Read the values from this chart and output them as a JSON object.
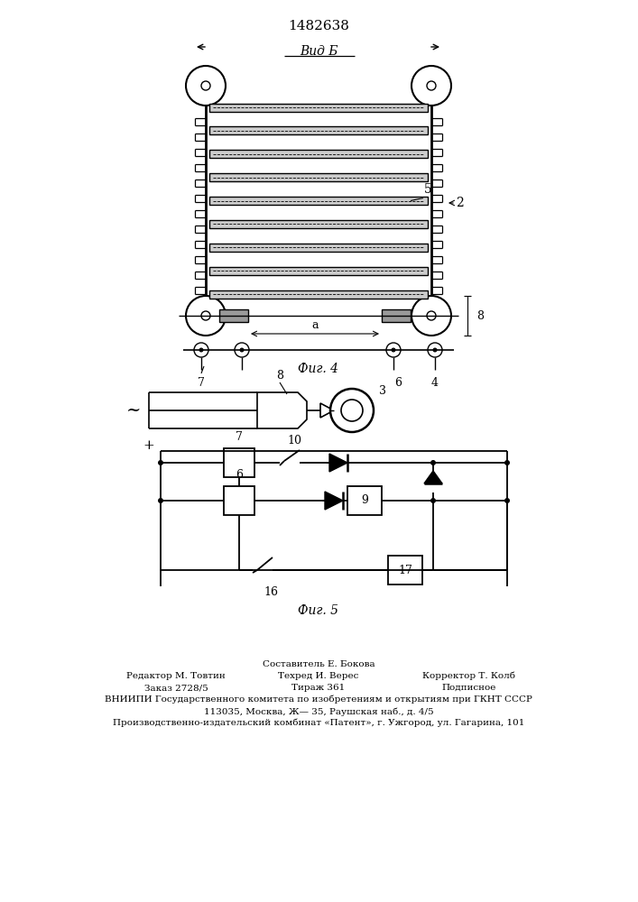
{
  "title": "1482638",
  "fig4_label": "Фиг. 4",
  "fig5_label": "Фиг. 5",
  "vid_b_label": "Вид Б",
  "background_color": "#ffffff",
  "line_color": "#000000",
  "label_5": "5",
  "label_2": "2",
  "label_8": "8",
  "label_a": "a",
  "label_4": "4",
  "label_6": "6",
  "label_7": "7",
  "label_10": "10",
  "label_9": "9",
  "label_15": "16",
  "label_17": "17",
  "label_3": "3",
  "label_8b": "8",
  "footer_line1": "Составитель Е. Бокова",
  "footer_line2_left": "Редактор М. Товтин",
  "footer_line2_mid": "Техред И. Верес",
  "footer_line2_right": "Корректор Т. Колб",
  "footer_line3_left": "Заказ 2728/5",
  "footer_line3_mid": "Тираж 361",
  "footer_line3_right": "Подписное",
  "footer_line4": "ВНИИПИ Государственного комитета по изобретениям и открытиям при ГКНТ СССР",
  "footer_line5": "113035, Москва, Ж— 35, Раушская наб., д. 4/5",
  "footer_line6": "Производственно-издательский комбинат «Патент», г. Ужгород, ул. Гагарина, 101"
}
